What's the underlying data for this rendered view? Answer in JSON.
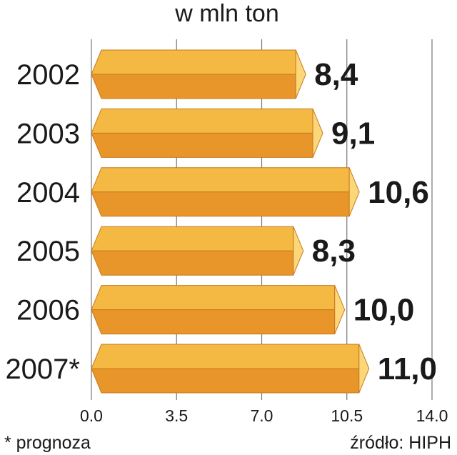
{
  "chart_data": {
    "type": "bar",
    "orientation": "horizontal",
    "title": "w mln ton",
    "categories": [
      "2002",
      "2003",
      "2004",
      "2005",
      "2006",
      "2007*"
    ],
    "values": [
      8.4,
      9.1,
      10.6,
      8.3,
      10.0,
      11.0
    ],
    "value_labels": [
      "8,4",
      "9,1",
      "10,6",
      "8,3",
      "10,0",
      "11,0"
    ],
    "xlim": [
      0,
      14
    ],
    "xticks": [
      "0.0",
      "3.5",
      "7.0",
      "10.5",
      "14.0"
    ],
    "grid": "vertical lines at ticks",
    "legend": "none",
    "footnote": "* prognoza",
    "source": "źródło: HIPH",
    "colors": {
      "bar_top": "#f4b942",
      "bar_bottom": "#e8952a",
      "bar_cap": "#fbd77a",
      "bar_outline": "#c9791d",
      "grid": "#777777"
    }
  }
}
